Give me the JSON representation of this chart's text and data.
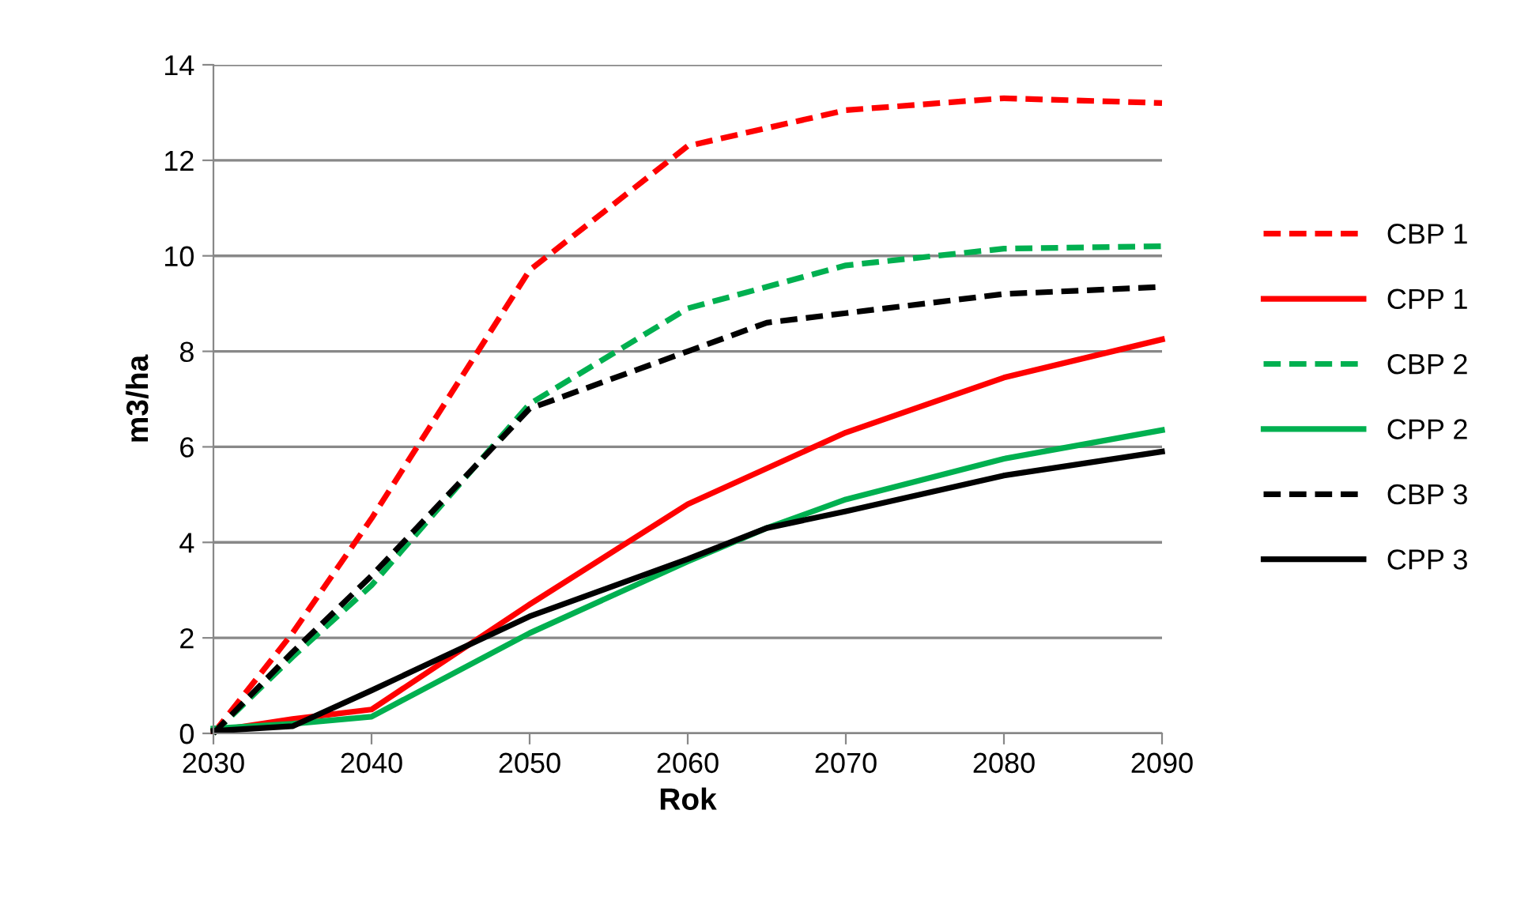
{
  "chart_data": {
    "type": "line",
    "xlabel": "Rok",
    "ylabel": "m3/ha",
    "xlim": [
      2030,
      2090
    ],
    "xticks": [
      2030,
      2040,
      2050,
      2060,
      2070,
      2080,
      2090
    ],
    "ylim": [
      0,
      14
    ],
    "yticks": [
      0,
      2,
      4,
      6,
      8,
      10,
      12,
      14
    ],
    "grid": "y",
    "legend": "right",
    "marker": "none",
    "series": [
      {
        "name": "CBP 1",
        "color": "#ff0000",
        "line_style": "dashed",
        "x": [
          2030,
          2035,
          2040,
          2050,
          2060,
          2070,
          2080,
          2090
        ],
        "values": [
          0,
          2.1,
          4.5,
          9.7,
          12.3,
          13.05,
          13.3,
          13.2
        ]
      },
      {
        "name": "CPP 1",
        "color": "#ff0000",
        "line_style": "solid",
        "x": [
          2030,
          2035,
          2040,
          2050,
          2060,
          2070,
          2080,
          2090
        ],
        "values": [
          0.05,
          0.3,
          0.5,
          2.7,
          4.8,
          6.3,
          7.45,
          8.25
        ]
      },
      {
        "name": "CBP 2",
        "color": "#00b050",
        "line_style": "dashed",
        "x": [
          2030,
          2035,
          2040,
          2050,
          2060,
          2070,
          2080,
          2090
        ],
        "values": [
          0,
          1.6,
          3.1,
          6.9,
          8.9,
          9.8,
          10.15,
          10.2
        ]
      },
      {
        "name": "CPP 2",
        "color": "#00b050",
        "line_style": "solid",
        "x": [
          2030,
          2035,
          2040,
          2050,
          2060,
          2065,
          2070,
          2080,
          2090
        ],
        "values": [
          0.1,
          0.2,
          0.35,
          2.1,
          3.6,
          4.3,
          4.9,
          5.75,
          6.35
        ]
      },
      {
        "name": "CBP 3",
        "color": "#000000",
        "line_style": "dashed",
        "x": [
          2030,
          2035,
          2040,
          2050,
          2060,
          2065,
          2070,
          2080,
          2090
        ],
        "values": [
          0,
          1.7,
          3.3,
          6.8,
          8.0,
          8.6,
          8.8,
          9.2,
          9.35
        ]
      },
      {
        "name": "CPP 3",
        "color": "#000000",
        "line_style": "solid",
        "x": [
          2030,
          2035,
          2040,
          2050,
          2060,
          2065,
          2070,
          2080,
          2090
        ],
        "values": [
          0.05,
          0.15,
          0.9,
          2.45,
          3.65,
          4.3,
          4.65,
          5.4,
          5.9
        ]
      }
    ]
  }
}
